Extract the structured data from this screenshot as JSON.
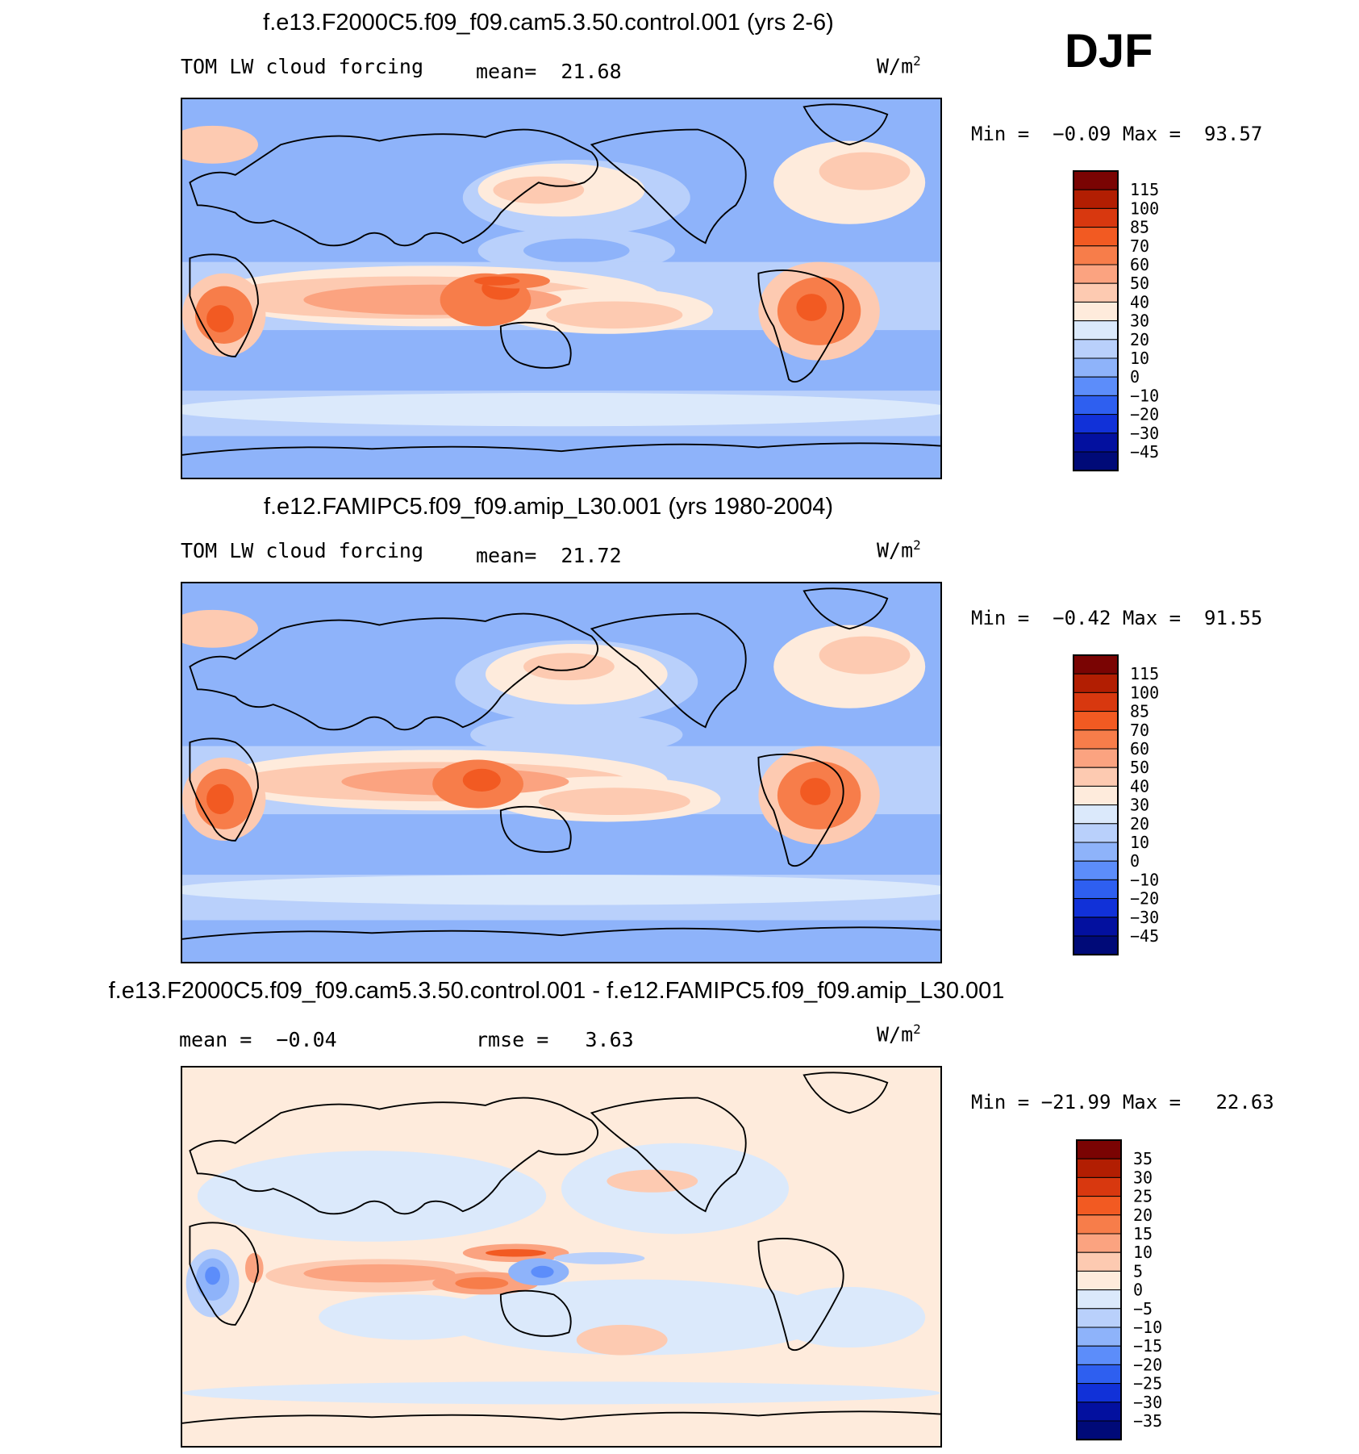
{
  "season": "DJF",
  "chart_data": [
    {
      "type": "heatmap",
      "title": "f.e13.F2000C5.f09_f09.cam5.3.50.control.001 (yrs 2-6)",
      "variable": "TOM LW cloud forcing",
      "stat1_label": "mean=",
      "stat1_value": "21.68",
      "units": "W/m",
      "units_exp": "2",
      "min_label": "Min =",
      "min_value": "−0.09",
      "max_label": "Max =",
      "max_value": "93.57",
      "levels": [
        "115",
        "100",
        "85",
        "70",
        "60",
        "50",
        "40",
        "30",
        "20",
        "10",
        "0",
        "−10",
        "−20",
        "−30",
        "−45"
      ],
      "colors": [
        "#7a0403",
        "#b21e02",
        "#d8380f",
        "#f25a22",
        "#f77d4a",
        "#fba380",
        "#fdcab1",
        "#feebdc",
        "#dbe9fb",
        "#b9d0fb",
        "#8eb3fa",
        "#5c8dfa",
        "#2e5ff0",
        "#1131d8",
        "#03109f",
        "#000a78"
      ],
      "palette_key": "cold-warm"
    },
    {
      "type": "heatmap",
      "title": "f.e12.FAMIPC5.f09_f09.amip_L30.001 (yrs 1980-2004)",
      "variable": "TOM LW cloud forcing",
      "stat1_label": "mean=",
      "stat1_value": "21.72",
      "units": "W/m",
      "units_exp": "2",
      "min_label": "Min =",
      "min_value": "−0.42",
      "max_label": "Max =",
      "max_value": "91.55",
      "levels": [
        "115",
        "100",
        "85",
        "70",
        "60",
        "50",
        "40",
        "30",
        "20",
        "10",
        "0",
        "−10",
        "−20",
        "−30",
        "−45"
      ],
      "colors": [
        "#7a0403",
        "#b21e02",
        "#d8380f",
        "#f25a22",
        "#f77d4a",
        "#fba380",
        "#fdcab1",
        "#feebdc",
        "#dbe9fb",
        "#b9d0fb",
        "#8eb3fa",
        "#5c8dfa",
        "#2e5ff0",
        "#1131d8",
        "#03109f",
        "#000a78"
      ],
      "palette_key": "cold-warm"
    },
    {
      "type": "heatmap",
      "title": "f.e13.F2000C5.f09_f09.cam5.3.50.control.001 - f.e12.FAMIPC5.f09_f09.amip_L30.001",
      "variable": "",
      "stat1_label": "mean =",
      "stat1_value": "−0.04",
      "stat2_label": "rmse =",
      "stat2_value": "3.63",
      "units": "W/m",
      "units_exp": "2",
      "min_label": "Min =",
      "min_value": "−21.99",
      "max_label": "Max =",
      "max_value": "22.63",
      "levels": [
        "35",
        "30",
        "25",
        "20",
        "15",
        "10",
        "5",
        "0",
        "−5",
        "−10",
        "−15",
        "−20",
        "−25",
        "−30",
        "−35"
      ],
      "colors": [
        "#7a0403",
        "#b21e02",
        "#d8380f",
        "#f25a22",
        "#f77d4a",
        "#fba380",
        "#fdcab1",
        "#feebdc",
        "#dbe9fb",
        "#b9d0fb",
        "#8eb3fa",
        "#5c8dfa",
        "#2e5ff0",
        "#1131d8",
        "#03109f",
        "#000a78"
      ],
      "palette_key": "cold-warm"
    }
  ]
}
